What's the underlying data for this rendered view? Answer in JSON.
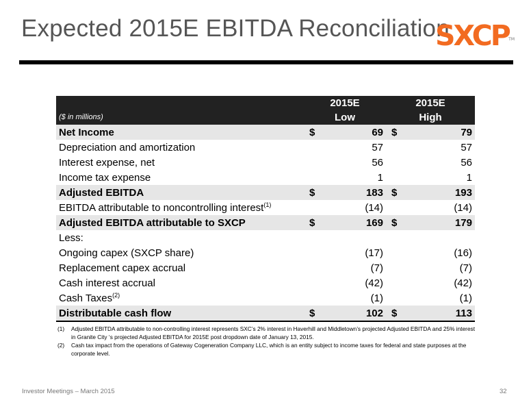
{
  "slide": {
    "title": "Expected 2015E EBITDA Reconciliation",
    "logo_text": "SXCP",
    "logo_tm": "TM",
    "footer_left": "Investor Meetings – March 2015",
    "page_number": "32"
  },
  "table": {
    "units": "($ in millions)",
    "col_low_line1": "2015E",
    "col_low_line2": "Low",
    "col_high_line1": "2015E",
    "col_high_line2": "High",
    "rows": [
      {
        "label": "Net Income",
        "sup": "",
        "cur_low": "$",
        "low": "69",
        "cur_high": "$",
        "high": "79"
      },
      {
        "label": "Depreciation and amortization",
        "sup": "",
        "cur_low": "",
        "low": "57",
        "cur_high": "",
        "high": "57"
      },
      {
        "label": "Interest expense, net",
        "sup": "",
        "cur_low": "",
        "low": "56",
        "cur_high": "",
        "high": "56"
      },
      {
        "label": "Income tax expense",
        "sup": "",
        "cur_low": "",
        "low": "1",
        "cur_high": "",
        "high": "1"
      },
      {
        "label": "Adjusted EBITDA",
        "sup": "",
        "cur_low": "$",
        "low": "183",
        "cur_high": "$",
        "high": "193"
      },
      {
        "label": "EBITDA attributable to noncontrolling interest",
        "sup": "(1)",
        "cur_low": "",
        "low": "(14)",
        "cur_high": "",
        "high": "(14)"
      },
      {
        "label": "Adjusted EBITDA attributable to SXCP",
        "sup": "",
        "cur_low": "$",
        "low": "169",
        "cur_high": "$",
        "high": "179"
      },
      {
        "label": "Less:",
        "sup": "",
        "cur_low": "",
        "low": "",
        "cur_high": "",
        "high": ""
      },
      {
        "label": "Ongoing capex (SXCP share)",
        "sup": "",
        "cur_low": "",
        "low": "(17)",
        "cur_high": "",
        "high": "(16)"
      },
      {
        "label": "Replacement capex accrual",
        "sup": "",
        "cur_low": "",
        "low": "(7)",
        "cur_high": "",
        "high": "(7)"
      },
      {
        "label": "Cash interest accrual",
        "sup": "",
        "cur_low": "",
        "low": "(42)",
        "cur_high": "",
        "high": "(42)"
      },
      {
        "label": "Cash Taxes",
        "sup": "(2)",
        "cur_low": "",
        "low": "(1)",
        "cur_high": "",
        "high": "(1)"
      },
      {
        "label": "Distributable cash flow",
        "sup": "",
        "cur_low": "$",
        "low": "102",
        "cur_high": "$",
        "high": "113"
      }
    ]
  },
  "notes": [
    {
      "num": "(1)",
      "text": "Adjusted EBITDA attributable to non-controlling interest represents SXC’s 2% interest in Haverhill and Middletown’s projected Adjusted EBITDA and 25% interest in Granite City ‘s projected Adjusted EBITDA for 2015E post dropdown date of January 13, 2015."
    },
    {
      "num": "(2)",
      "text": "Cash tax impact from the operations of Gateway Cogeneration Company LLC, which is an entity subject to income taxes for federal and state purposes at the corporate level."
    }
  ]
}
